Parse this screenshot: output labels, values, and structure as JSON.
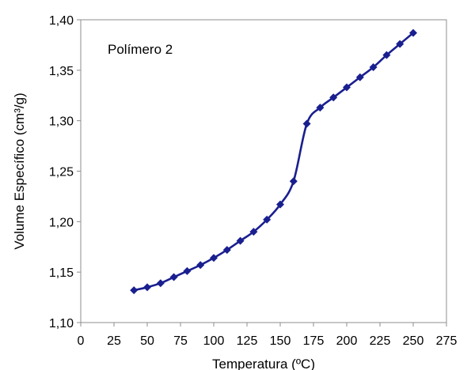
{
  "chart_data": {
    "type": "line",
    "title": "",
    "xlabel": "Temperatura (ºC)",
    "ylabel": "Volume Específico (cm³/g)",
    "xlim": [
      0,
      275
    ],
    "ylim": [
      1.1,
      1.4
    ],
    "x_ticks": [
      "0",
      "25",
      "50",
      "75",
      "100",
      "125",
      "150",
      "175",
      "200",
      "225",
      "250",
      "275"
    ],
    "y_ticks": [
      "1,10",
      "1,15",
      "1,20",
      "1,25",
      "1,30",
      "1,35",
      "1,40"
    ],
    "grid": false,
    "annotation": "Polímero 2",
    "series": [
      {
        "color": "#1a1f8f",
        "marker": "diamond",
        "x": [
          40,
          50,
          60,
          70,
          80,
          90,
          100,
          110,
          120,
          130,
          140,
          150,
          160,
          170,
          180,
          190,
          200,
          210,
          220,
          230,
          240,
          250
        ],
        "y": [
          1.132,
          1.135,
          1.139,
          1.145,
          1.151,
          1.157,
          1.164,
          1.172,
          1.181,
          1.19,
          1.202,
          1.217,
          1.24,
          1.297,
          1.313,
          1.323,
          1.333,
          1.343,
          1.353,
          1.365,
          1.376,
          1.387
        ]
      }
    ]
  }
}
